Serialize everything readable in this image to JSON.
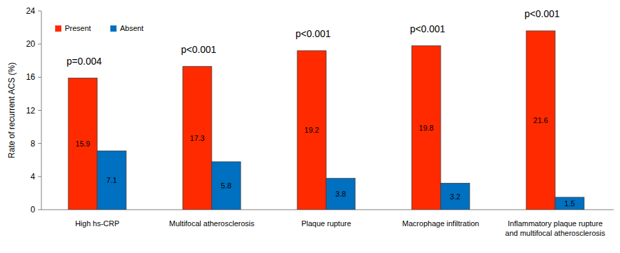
{
  "chart_data": {
    "type": "bar",
    "y_label": "Rate of recurrent ACS (%)",
    "categories": [
      "High hs-CRP",
      "Multifocal atherosclerosis",
      "Plaque rupture",
      "Macrophage infiltration",
      "Inflammatory plaque rupture and multifocal atherosclerosis"
    ],
    "series": [
      {
        "name": "Present",
        "color": "#ff2a00",
        "values": [
          15.9,
          17.3,
          19.2,
          19.8,
          21.6
        ]
      },
      {
        "name": "Absent",
        "color": "#0070c0",
        "values": [
          7.1,
          5.8,
          3.8,
          3.2,
          1.5
        ]
      }
    ],
    "annotations": [
      "p=0.004",
      "p<0.001",
      "p<0.001",
      "p<0.001",
      "p<0.001"
    ],
    "ylim": [
      0,
      24
    ],
    "yticks": [
      0,
      4,
      8,
      12,
      16,
      20,
      24
    ],
    "grid": false,
    "legend": "upper left",
    "data_labels": true
  }
}
